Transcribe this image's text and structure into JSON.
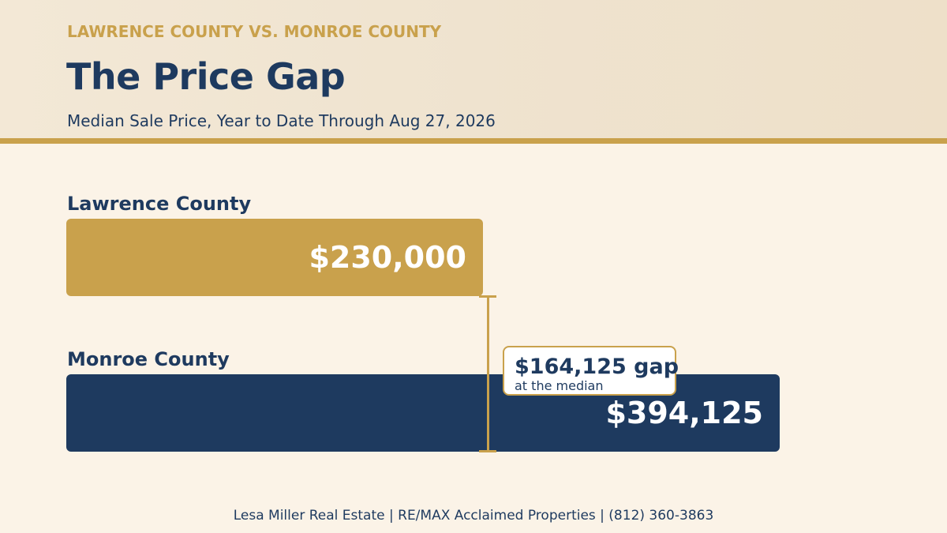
{
  "header": {
    "eyebrow": "LAWRENCE COUNTY VS. MONROE COUNTY",
    "title": "The Price Gap",
    "subtitle": "Median Sale Price, Year to Date Through Aug 27, 2026"
  },
  "colors": {
    "gold": "#c9a14c",
    "navy": "#1e3a5f",
    "background": "#fbf3e7"
  },
  "chart_data": {
    "type": "bar",
    "orientation": "horizontal",
    "categories": [
      "Lawrence County",
      "Monroe County"
    ],
    "values": [
      230000,
      394125
    ],
    "value_labels": [
      "$230,000",
      "$394,125"
    ],
    "bar_colors": [
      "#c9a14c",
      "#1e3a5f"
    ],
    "annotation": {
      "text": "$164,125 gap",
      "subtext": "at the median",
      "value": 164125
    },
    "title": "The Price Gap",
    "subtitle": "Median Sale Price, Year to Date Through Aug 27, 2026"
  },
  "footer": {
    "text": "Lesa Miller Real Estate  |  RE/MAX Acclaimed Properties  |  (812) 360-3863"
  }
}
